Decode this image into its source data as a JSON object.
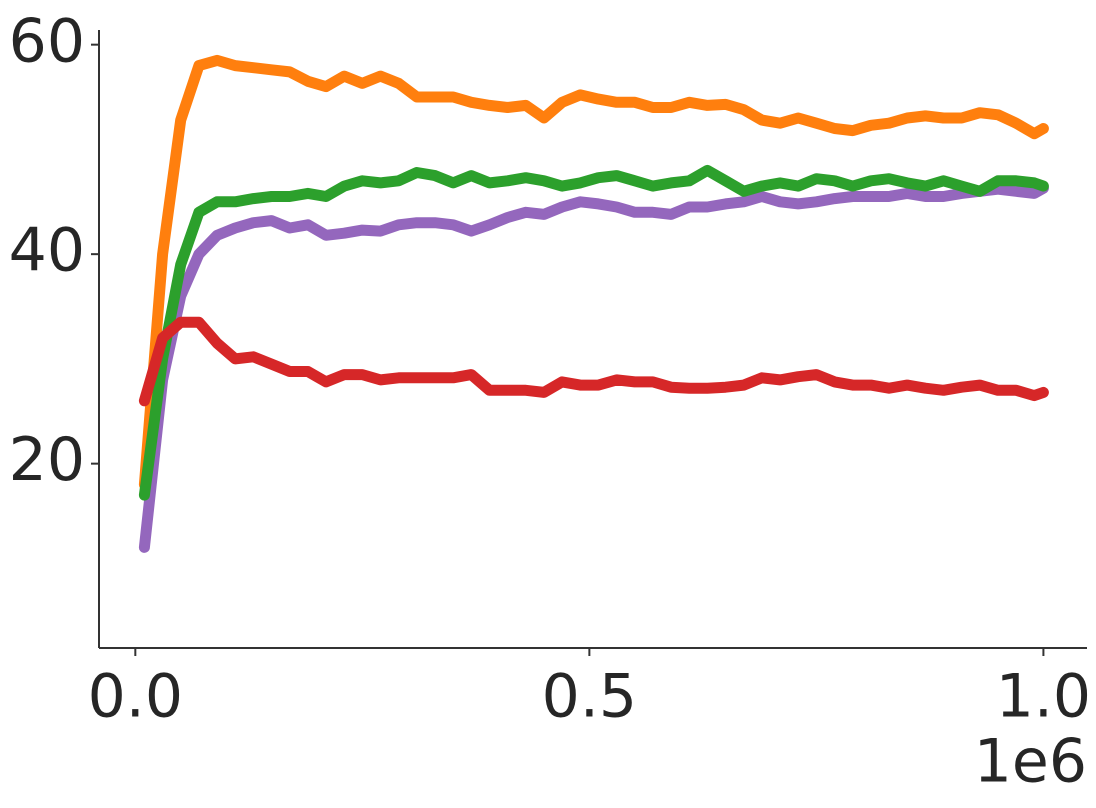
{
  "chart_data": {
    "type": "line",
    "x": [
      10000,
      30000,
      50000,
      70000,
      90000,
      110000,
      130000,
      150000,
      170000,
      190000,
      210000,
      230000,
      250000,
      270000,
      290000,
      310000,
      330000,
      350000,
      370000,
      390000,
      410000,
      430000,
      450000,
      470000,
      490000,
      510000,
      530000,
      550000,
      570000,
      590000,
      610000,
      630000,
      650000,
      670000,
      690000,
      710000,
      730000,
      750000,
      770000,
      790000,
      810000,
      830000,
      850000,
      870000,
      890000,
      910000,
      930000,
      950000,
      970000,
      990000,
      1000000
    ],
    "series": [
      {
        "color": "#ff7f0e",
        "values": [
          18,
          40,
          52.8,
          58,
          58.5,
          58,
          57.8,
          57.6,
          57.4,
          56.5,
          56,
          57,
          56.3,
          57,
          56.3,
          55,
          55,
          55,
          54.5,
          54.2,
          54,
          54.2,
          53,
          54.5,
          55.2,
          54.8,
          54.5,
          54.5,
          54,
          54,
          54.5,
          54.2,
          54.3,
          53.8,
          52.8,
          52.5,
          53,
          52.5,
          52,
          51.8,
          52.3,
          52.5,
          53,
          53.2,
          53,
          53,
          53.5,
          53.3,
          52.5,
          51.5,
          52
        ]
      },
      {
        "color": "#9467bd",
        "values": [
          12,
          28,
          36,
          40,
          41.8,
          42.5,
          43,
          43.2,
          42.5,
          42.8,
          41.8,
          42,
          42.3,
          42.2,
          42.8,
          43,
          43,
          42.8,
          42.2,
          42.8,
          43.5,
          44,
          43.8,
          44.5,
          45,
          44.8,
          44.5,
          44,
          44,
          43.8,
          44.5,
          44.5,
          44.8,
          45,
          45.5,
          45,
          44.8,
          45,
          45.3,
          45.5,
          45.5,
          45.5,
          45.8,
          45.5,
          45.5,
          45.8,
          46,
          46.2,
          46,
          45.8,
          46.3
        ]
      },
      {
        "color": "#2ca02c",
        "values": [
          17,
          30,
          39,
          44,
          45,
          45,
          45.3,
          45.5,
          45.5,
          45.8,
          45.5,
          46.5,
          47,
          46.8,
          47,
          47.8,
          47.5,
          46.8,
          47.5,
          46.8,
          47,
          47.3,
          47,
          46.5,
          46.8,
          47.3,
          47.5,
          47,
          46.5,
          46.8,
          47,
          48,
          47,
          46,
          46.5,
          46.8,
          46.5,
          47.2,
          47,
          46.5,
          47,
          47.2,
          46.8,
          46.5,
          47,
          46.5,
          46,
          47,
          47,
          46.8,
          46.5
        ]
      },
      {
        "color": "#d62728",
        "values": [
          26,
          32,
          33.5,
          33.5,
          31.5,
          30,
          30.2,
          29.5,
          28.8,
          28.8,
          27.8,
          28.5,
          28.5,
          28,
          28.2,
          28.2,
          28.2,
          28.2,
          28.5,
          27,
          27,
          27,
          26.8,
          27.8,
          27.5,
          27.5,
          28,
          27.8,
          27.8,
          27.3,
          27.2,
          27.2,
          27.3,
          27.5,
          28.2,
          28,
          28.3,
          28.5,
          27.8,
          27.5,
          27.5,
          27.2,
          27.5,
          27.2,
          27,
          27.3,
          27.5,
          27,
          27,
          26.5,
          26.8
        ]
      }
    ],
    "xlim": [
      -40000,
      1048000
    ],
    "ylim": [
      2.4,
      61.4
    ],
    "xticks": [
      {
        "value": 0,
        "label": "0.0"
      },
      {
        "value": 500000,
        "label": "0.5"
      },
      {
        "value": 1000000,
        "label": "1.0"
      }
    ],
    "x_offset_label": "1e6",
    "yticks": [
      20,
      40,
      60
    ]
  }
}
